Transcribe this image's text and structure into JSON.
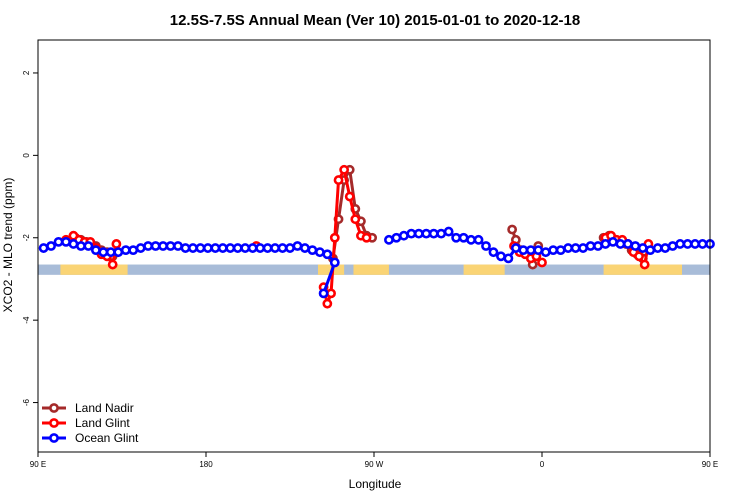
{
  "chart_data": {
    "type": "line",
    "title": "12.5S-7.5S Annual Mean (Ver 10)   2015-01-01 to 2020-12-18",
    "xlabel": "Longitude",
    "ylabel": "XCO2 - MLO trend (ppm)",
    "xlim": [
      0,
      360
    ],
    "ylim": [
      -7.2,
      2.8
    ],
    "x_ticks": [
      {
        "value": 0,
        "label": "90 E"
      },
      {
        "value": 90,
        "label": "180"
      },
      {
        "value": 180,
        "label": "90 W"
      },
      {
        "value": 270,
        "label": "0"
      },
      {
        "value": 360,
        "label": "90 E"
      }
    ],
    "y_ticks": [
      {
        "value": 2,
        "label": "2"
      },
      {
        "value": 0,
        "label": "0"
      },
      {
        "value": -2,
        "label": "-2"
      },
      {
        "value": -4,
        "label": "-4"
      },
      {
        "value": -6,
        "label": "-6"
      }
    ],
    "grid": false,
    "legend_position": "bottom-left",
    "land_strip": {
      "y_range": [
        -2.9,
        -2.65
      ],
      "ocean_color": "#a8bcd8",
      "land_color": "#fad475",
      "land_segments": [
        [
          12,
          48
        ],
        [
          150,
          164
        ],
        [
          169,
          188
        ],
        [
          228,
          250
        ],
        [
          303,
          345
        ]
      ]
    },
    "series": [
      {
        "name": "Land Nadir",
        "color": "#a52a2a",
        "segments": [
          [
            [
              18,
              -2.05
            ],
            [
              20,
              -2.0
            ],
            [
              23,
              -2.05
            ],
            [
              26,
              -2.1
            ],
            [
              28,
              -2.15
            ],
            [
              31,
              -2.2
            ],
            [
              34,
              -2.3
            ],
            [
              37,
              -2.35
            ],
            [
              40,
              -2.45
            ]
          ],
          [
            [
              158,
              -2.5
            ],
            [
              161,
              -1.55
            ],
            [
              164,
              -0.6
            ],
            [
              167,
              -0.35
            ],
            [
              170,
              -1.3
            ],
            [
              173,
              -1.6
            ],
            [
              176,
              -1.95
            ],
            [
              179,
              -2.0
            ]
          ],
          [
            [
              254,
              -1.8
            ],
            [
              256,
              -2.05
            ],
            [
              259,
              -2.3
            ],
            [
              262,
              -2.4
            ],
            [
              265,
              -2.65
            ],
            [
              268,
              -2.2
            ]
          ],
          [
            [
              303,
              -2.0
            ],
            [
              306,
              -1.95
            ],
            [
              309,
              -2.05
            ],
            [
              312,
              -2.1
            ],
            [
              315,
              -2.15
            ],
            [
              318,
              -2.3
            ],
            [
              321,
              -2.4
            ],
            [
              324,
              -2.5
            ]
          ]
        ]
      },
      {
        "name": "Land Glint",
        "color": "#ff0000",
        "segments": [
          [
            [
              15,
              -2.05
            ],
            [
              19,
              -1.95
            ],
            [
              22,
              -2.05
            ],
            [
              25,
              -2.1
            ],
            [
              28,
              -2.1
            ],
            [
              31,
              -2.25
            ],
            [
              34,
              -2.4
            ],
            [
              37,
              -2.45
            ],
            [
              40,
              -2.65
            ],
            [
              42,
              -2.15
            ]
          ],
          [
            [
              117,
              -2.2
            ]
          ],
          [
            [
              153,
              -3.2
            ],
            [
              155,
              -3.6
            ],
            [
              157,
              -3.35
            ],
            [
              159,
              -2.0
            ],
            [
              161,
              -0.6
            ],
            [
              164,
              -0.35
            ],
            [
              167,
              -1.0
            ],
            [
              170,
              -1.55
            ],
            [
              173,
              -1.95
            ],
            [
              176,
              -2.0
            ]
          ],
          [
            [
              255,
              -2.2
            ],
            [
              258,
              -2.35
            ],
            [
              261,
              -2.4
            ],
            [
              264,
              -2.5
            ],
            [
              267,
              -2.45
            ],
            [
              270,
              -2.6
            ]
          ],
          [
            [
              304,
              -2.0
            ],
            [
              307,
              -1.95
            ],
            [
              310,
              -2.05
            ],
            [
              313,
              -2.05
            ],
            [
              316,
              -2.15
            ],
            [
              319,
              -2.35
            ],
            [
              322,
              -2.45
            ],
            [
              325,
              -2.65
            ],
            [
              327,
              -2.15
            ]
          ]
        ]
      },
      {
        "name": "Ocean Glint",
        "color": "#0000ff",
        "segments": [
          [
            [
              3,
              -2.25
            ],
            [
              7,
              -2.2
            ],
            [
              11,
              -2.1
            ],
            [
              15,
              -2.1
            ],
            [
              19,
              -2.15
            ],
            [
              23,
              -2.2
            ],
            [
              27,
              -2.2
            ],
            [
              31,
              -2.3
            ],
            [
              35,
              -2.35
            ],
            [
              39,
              -2.35
            ],
            [
              43,
              -2.35
            ],
            [
              47,
              -2.3
            ],
            [
              51,
              -2.3
            ],
            [
              55,
              -2.25
            ],
            [
              59,
              -2.2
            ],
            [
              63,
              -2.2
            ],
            [
              67,
              -2.2
            ],
            [
              71,
              -2.2
            ],
            [
              75,
              -2.2
            ],
            [
              79,
              -2.25
            ],
            [
              83,
              -2.25
            ],
            [
              87,
              -2.25
            ],
            [
              91,
              -2.25
            ],
            [
              95,
              -2.25
            ],
            [
              99,
              -2.25
            ],
            [
              103,
              -2.25
            ],
            [
              107,
              -2.25
            ],
            [
              111,
              -2.25
            ],
            [
              115,
              -2.25
            ],
            [
              119,
              -2.25
            ],
            [
              123,
              -2.25
            ],
            [
              127,
              -2.25
            ],
            [
              131,
              -2.25
            ],
            [
              135,
              -2.25
            ],
            [
              139,
              -2.2
            ],
            [
              143,
              -2.25
            ],
            [
              147,
              -2.3
            ],
            [
              151,
              -2.35
            ],
            [
              155,
              -2.4
            ],
            [
              159,
              -2.6
            ],
            [
              153,
              -3.35
            ]
          ],
          [
            [
              188,
              -2.05
            ],
            [
              192,
              -2.0
            ],
            [
              196,
              -1.95
            ],
            [
              200,
              -1.9
            ],
            [
              204,
              -1.9
            ],
            [
              208,
              -1.9
            ],
            [
              212,
              -1.9
            ],
            [
              216,
              -1.9
            ],
            [
              220,
              -1.85
            ],
            [
              224,
              -2.0
            ],
            [
              228,
              -2.0
            ],
            [
              232,
              -2.05
            ],
            [
              236,
              -2.05
            ],
            [
              240,
              -2.2
            ],
            [
              244,
              -2.35
            ],
            [
              248,
              -2.45
            ],
            [
              252,
              -2.5
            ],
            [
              256,
              -2.25
            ],
            [
              260,
              -2.3
            ],
            [
              264,
              -2.3
            ],
            [
              268,
              -2.3
            ],
            [
              272,
              -2.35
            ],
            [
              276,
              -2.3
            ],
            [
              280,
              -2.3
            ],
            [
              284,
              -2.25
            ],
            [
              288,
              -2.25
            ],
            [
              292,
              -2.25
            ],
            [
              296,
              -2.2
            ],
            [
              300,
              -2.2
            ],
            [
              304,
              -2.15
            ],
            [
              308,
              -2.1
            ],
            [
              312,
              -2.15
            ],
            [
              316,
              -2.15
            ],
            [
              320,
              -2.2
            ],
            [
              324,
              -2.25
            ],
            [
              328,
              -2.3
            ],
            [
              332,
              -2.25
            ],
            [
              336,
              -2.25
            ],
            [
              340,
              -2.2
            ],
            [
              344,
              -2.15
            ],
            [
              348,
              -2.15
            ],
            [
              352,
              -2.15
            ],
            [
              356,
              -2.15
            ],
            [
              360,
              -2.15
            ]
          ]
        ]
      }
    ]
  }
}
